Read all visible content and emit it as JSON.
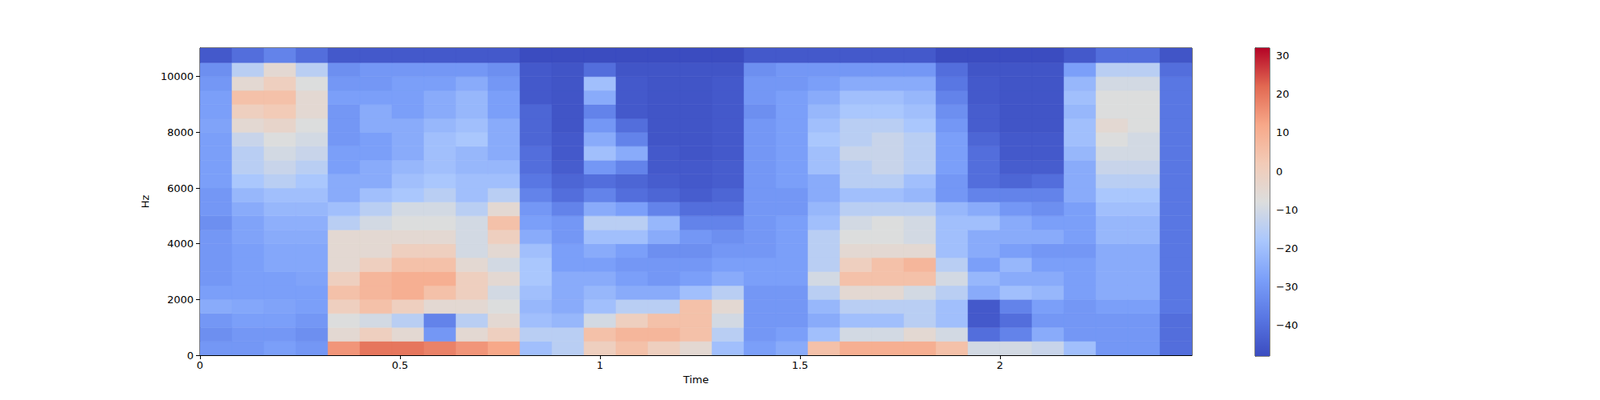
{
  "chart_data": {
    "type": "heatmap",
    "xlabel": "Time",
    "ylabel": "Hz",
    "xlim": [
      0,
      2.48
    ],
    "ylim": [
      0,
      11025
    ],
    "xticks": [
      0,
      0.5,
      1,
      1.5,
      2
    ],
    "yticks": [
      0,
      2000,
      4000,
      6000,
      8000,
      10000
    ],
    "x_bins": [
      0,
      0.08,
      0.16,
      0.24,
      0.32,
      0.4,
      0.48,
      0.56,
      0.64,
      0.72,
      0.8,
      0.88,
      0.96,
      1.04,
      1.12,
      1.2,
      1.28,
      1.36,
      1.44,
      1.52,
      1.6,
      1.68,
      1.76,
      1.84,
      1.92,
      2.0,
      2.08,
      2.16,
      2.24,
      2.32,
      2.4,
      2.48
    ],
    "y_bins": [
      0,
      500,
      1000,
      1500,
      2000,
      2500,
      3000,
      3500,
      4000,
      4500,
      5000,
      5500,
      6000,
      6500,
      7000,
      7500,
      8000,
      8500,
      9000,
      9500,
      10000,
      10500,
      11025
    ],
    "values": [
      [
        -30,
        -32,
        -30,
        -25,
        -28,
        -30,
        -30,
        -30,
        -30,
        -32,
        -30,
        -30,
        -28,
        -28,
        -28,
        -28,
        -27,
        -28,
        -28,
        -30,
        -32,
        -45
      ],
      [
        -30,
        -30,
        -28,
        -26,
        -28,
        -28,
        -28,
        -28,
        -27,
        -27,
        -25,
        -22,
        -18,
        -15,
        -15,
        -12,
        -5,
        0,
        5,
        -5,
        -15,
        -40
      ],
      [
        -28,
        -30,
        -28,
        -27,
        -28,
        -28,
        -26,
        -26,
        -25,
        -24,
        -22,
        -20,
        -15,
        -12,
        -10,
        -8,
        -3,
        2,
        5,
        0,
        -5,
        -35
      ],
      [
        -30,
        -32,
        -30,
        -28,
        -28,
        -27,
        -26,
        -26,
        -25,
        -24,
        -22,
        -20,
        -18,
        -15,
        -12,
        -10,
        -8,
        -5,
        -5,
        -8,
        -15,
        -40
      ],
      [
        15,
        -5,
        -8,
        0,
        5,
        0,
        -5,
        -5,
        -5,
        -15,
        -20,
        -25,
        -25,
        -28,
        -28,
        -30,
        -30,
        -30,
        -28,
        -30,
        -32,
        -45
      ],
      [
        20,
        0,
        -10,
        5,
        8,
        8,
        0,
        -5,
        -5,
        -10,
        -15,
        -20,
        -25,
        -25,
        -28,
        -28,
        -25,
        -25,
        -28,
        -30,
        -30,
        -45
      ],
      [
        20,
        -5,
        -15,
        0,
        10,
        10,
        5,
        0,
        -5,
        -8,
        -10,
        -18,
        -20,
        -22,
        -25,
        -25,
        -25,
        -28,
        -28,
        -28,
        -30,
        -45
      ],
      [
        18,
        -30,
        -35,
        -5,
        5,
        10,
        5,
        0,
        -5,
        -8,
        -10,
        -15,
        -18,
        -20,
        -20,
        -20,
        -22,
        -25,
        -25,
        -28,
        -30,
        -45
      ],
      [
        15,
        -5,
        -15,
        -5,
        0,
        0,
        -5,
        -10,
        -10,
        -10,
        -15,
        -20,
        -20,
        -22,
        -22,
        -18,
        -20,
        -22,
        -22,
        -25,
        -30,
        -45
      ],
      [
        12,
        0,
        -5,
        -8,
        -10,
        -5,
        -10,
        -5,
        0,
        5,
        -5,
        -15,
        -20,
        -22,
        -25,
        -25,
        -25,
        -28,
        -28,
        -30,
        -32,
        -45
      ],
      [
        -20,
        -15,
        -20,
        -22,
        -20,
        -18,
        -18,
        -20,
        -25,
        -28,
        -30,
        -35,
        -38,
        -40,
        -40,
        -42,
        -42,
        -42,
        -45,
        -45,
        -45,
        -48
      ],
      [
        -15,
        -15,
        -22,
        -25,
        -25,
        -25,
        -28,
        -28,
        -30,
        -30,
        -35,
        -40,
        -42,
        -44,
        -45,
        -45,
        -46,
        -46,
        -46,
        -46,
        -46,
        -48
      ],
      [
        0,
        5,
        -10,
        -20,
        -22,
        -25,
        -28,
        -25,
        -20,
        -15,
        -25,
        -35,
        -40,
        -30,
        -20,
        -25,
        -30,
        -35,
        -25,
        -20,
        -40,
        -48
      ],
      [
        5,
        8,
        0,
        -15,
        -25,
        -28,
        -30,
        -28,
        -20,
        -15,
        -28,
        -40,
        -42,
        -35,
        -25,
        -35,
        -40,
        -45,
        -45,
        -45,
        -46,
        -48
      ],
      [
        0,
        8,
        5,
        -15,
        -25,
        -30,
        -30,
        -32,
        -25,
        -22,
        -35,
        -42,
        -44,
        -45,
        -45,
        -46,
        -46,
        -46,
        -46,
        -46,
        -46,
        -48
      ],
      [
        -5,
        5,
        5,
        5,
        -20,
        -28,
        -30,
        -32,
        -30,
        -35,
        -40,
        -44,
        -45,
        -45,
        -46,
        -46,
        -46,
        -46,
        -46,
        -46,
        -46,
        -48
      ],
      [
        -20,
        -15,
        -10,
        -5,
        -15,
        -25,
        -28,
        -30,
        -32,
        -35,
        -40,
        -42,
        -44,
        -44,
        -45,
        -45,
        -45,
        -45,
        -45,
        -45,
        -46,
        -48
      ],
      [
        -28,
        -30,
        -30,
        -30,
        -30,
        -28,
        -28,
        -30,
        -30,
        -30,
        -30,
        -30,
        -30,
        -30,
        -30,
        -30,
        -30,
        -32,
        -30,
        -30,
        -32,
        -45
      ],
      [
        -25,
        -28,
        -30,
        -30,
        -30,
        -28,
        -28,
        -28,
        -28,
        -28,
        -30,
        -30,
        -28,
        -28,
        -28,
        -28,
        -28,
        -28,
        -28,
        -30,
        -30,
        -45
      ],
      [
        5,
        -20,
        -25,
        -22,
        -15,
        -10,
        -15,
        -15,
        -15,
        -20,
        -22,
        -25,
        -25,
        -20,
        -20,
        -18,
        -20,
        -22,
        -25,
        -28,
        -30,
        -45
      ],
      [
        10,
        -10,
        -20,
        -15,
        -5,
        5,
        0,
        -5,
        -8,
        -10,
        -15,
        -20,
        -15,
        -15,
        -12,
        -15,
        -15,
        -18,
        -20,
        -25,
        -30,
        -45
      ],
      [
        10,
        -10,
        -20,
        -15,
        -5,
        5,
        5,
        -5,
        -8,
        -8,
        -15,
        -20,
        -15,
        -12,
        -12,
        -12,
        -15,
        -18,
        -20,
        -25,
        -30,
        -45
      ],
      [
        10,
        -5,
        -15,
        -15,
        -10,
        5,
        8,
        -5,
        -10,
        -10,
        -15,
        -22,
        -20,
        -15,
        -15,
        -15,
        -18,
        -20,
        -22,
        -25,
        -30,
        -45
      ],
      [
        5,
        -10,
        -20,
        -20,
        -15,
        -10,
        -15,
        -20,
        -20,
        -20,
        -22,
        -30,
        -30,
        -28,
        -28,
        -28,
        -30,
        -32,
        -35,
        -38,
        -40,
        -48
      ],
      [
        -10,
        -40,
        -45,
        -45,
        -25,
        -22,
        -28,
        -25,
        -25,
        -20,
        -25,
        -35,
        -40,
        -40,
        -40,
        -42,
        -44,
        -44,
        -45,
        -45,
        -46,
        -48
      ],
      [
        -10,
        -35,
        -40,
        -35,
        -20,
        -25,
        -22,
        -28,
        -25,
        -25,
        -30,
        -35,
        -42,
        -44,
        -45,
        -45,
        -46,
        -46,
        -46,
        -46,
        -46,
        -48
      ],
      [
        -12,
        -25,
        -30,
        -28,
        -22,
        -25,
        -28,
        -30,
        -25,
        -28,
        -32,
        -35,
        -40,
        -44,
        -45,
        -45,
        -46,
        -46,
        -46,
        -46,
        -46,
        -48
      ],
      [
        -20,
        -30,
        -30,
        -30,
        -28,
        -28,
        -28,
        -30,
        -28,
        -28,
        -28,
        -25,
        -25,
        -25,
        -22,
        -20,
        -20,
        -22,
        -20,
        -22,
        -28,
        -45
      ],
      [
        -30,
        -30,
        -30,
        -28,
        -25,
        -25,
        -25,
        -25,
        -22,
        -22,
        -20,
        -18,
        -15,
        -12,
        -10,
        -8,
        -5,
        -8,
        -8,
        -10,
        -15,
        -40
      ],
      [
        -30,
        -30,
        -30,
        -28,
        -25,
        -25,
        -25,
        -25,
        -22,
        -22,
        -20,
        -18,
        -15,
        -12,
        -10,
        -10,
        -8,
        -8,
        -8,
        -10,
        -15,
        -40
      ],
      [
        -40,
        -40,
        -40,
        -38,
        -38,
        -38,
        -38,
        -38,
        -38,
        -38,
        -38,
        -38,
        -38,
        -38,
        -38,
        -38,
        -38,
        -38,
        -38,
        -38,
        -40,
        -46
      ]
    ],
    "colorbar": {
      "range": [
        -48,
        32
      ],
      "ticks": [
        {
          "value": -40,
          "label": "−40"
        },
        {
          "value": -30,
          "label": "−30"
        },
        {
          "value": -20,
          "label": "−20"
        },
        {
          "value": -10,
          "label": "−10"
        },
        0,
        10,
        20,
        30
      ]
    }
  }
}
